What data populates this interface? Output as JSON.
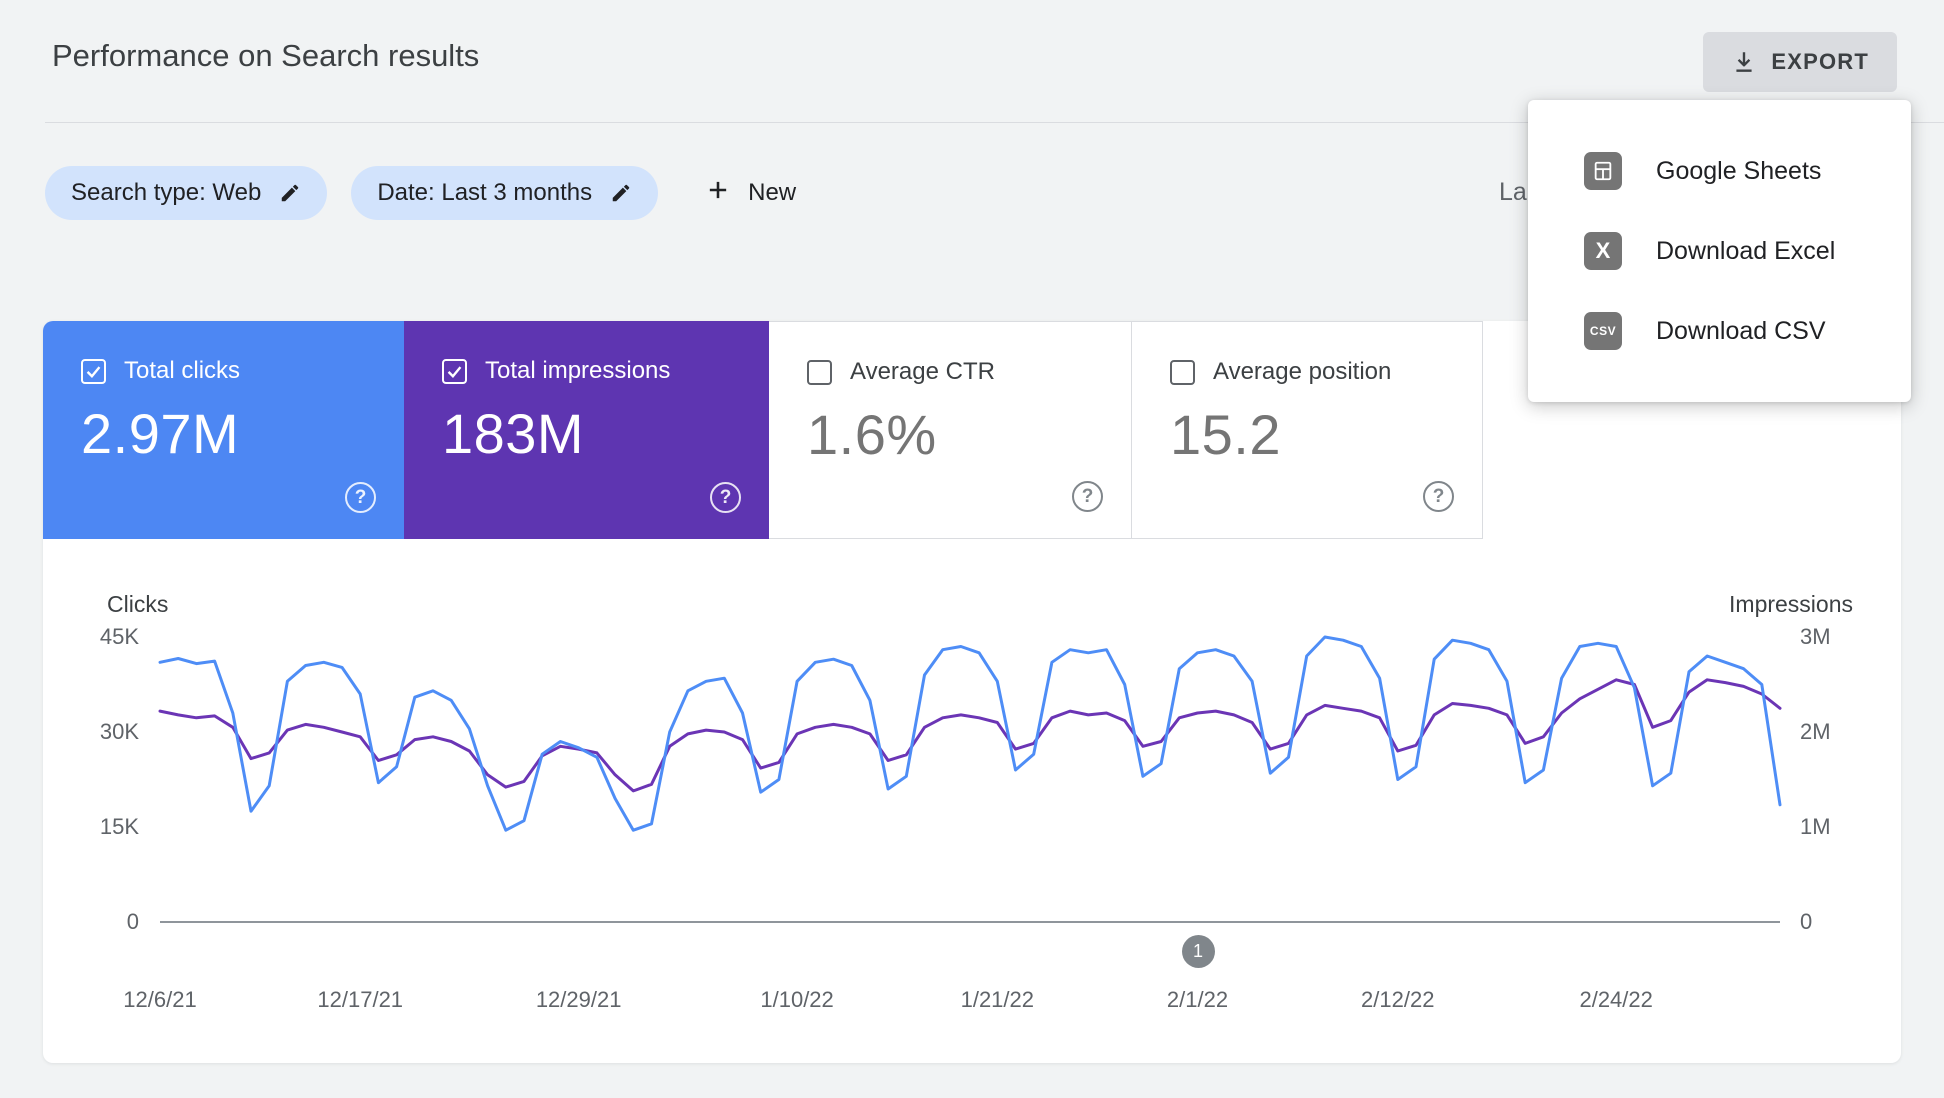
{
  "header": {
    "title": "Performance on Search results",
    "export_label": "EXPORT"
  },
  "filters": {
    "search_type_chip": "Search type: Web",
    "date_chip": "Date: Last 3 months",
    "new_button": "New",
    "last_updated_partial": "La"
  },
  "export_menu": {
    "items": [
      {
        "label": "Google Sheets",
        "icon": "google-sheets-icon"
      },
      {
        "label": "Download Excel",
        "icon": "excel-icon"
      },
      {
        "label": "Download CSV",
        "icon": "csv-icon"
      }
    ]
  },
  "metric_cards": [
    {
      "label": "Total clicks",
      "value": "2.97M",
      "checked": true,
      "bg": "#4d87f3"
    },
    {
      "label": "Total impressions",
      "value": "183M",
      "checked": true,
      "bg": "#5e35b1"
    },
    {
      "label": "Average CTR",
      "value": "1.6%",
      "checked": false,
      "bg": "#ffffff"
    },
    {
      "label": "Average position",
      "value": "15.2",
      "checked": false,
      "bg": "#ffffff"
    }
  ],
  "colors": {
    "clicks_blue": "#4e8df6",
    "impressions_purple": "#6b35b5",
    "chip_blue": "#d2e3fc",
    "page_bg": "#f1f3f4",
    "axis_gray": "#5f6368"
  },
  "chart_data": {
    "type": "line",
    "title": "",
    "grid": "off",
    "left_axis": {
      "label": "Clicks",
      "ticks": [
        "45K",
        "30K",
        "15K",
        "0"
      ],
      "tick_values": [
        45,
        30,
        15,
        0
      ],
      "max": 45,
      "unit": "thousands of clicks"
    },
    "right_axis": {
      "label": "Impressions",
      "ticks": [
        "3M",
        "2M",
        "1M",
        "0"
      ],
      "tick_values": [
        3,
        2,
        1,
        0
      ],
      "max": 3,
      "unit": "millions of impressions"
    },
    "x_ticks": [
      {
        "label": "12/6/21",
        "index": 0
      },
      {
        "label": "12/17/21",
        "index": 11
      },
      {
        "label": "12/29/21",
        "index": 23
      },
      {
        "label": "1/10/22",
        "index": 35
      },
      {
        "label": "1/21/22",
        "index": 46
      },
      {
        "label": "2/1/22",
        "index": 57
      },
      {
        "label": "2/12/22",
        "index": 68
      },
      {
        "label": "2/24/22",
        "index": 80
      }
    ],
    "x_dates": [
      "12/6/21",
      "12/7/21",
      "12/8/21",
      "12/9/21",
      "12/10/21",
      "12/11/21",
      "12/12/21",
      "12/13/21",
      "12/14/21",
      "12/15/21",
      "12/16/21",
      "12/17/21",
      "12/18/21",
      "12/19/21",
      "12/20/21",
      "12/21/21",
      "12/22/21",
      "12/23/21",
      "12/24/21",
      "12/25/21",
      "12/26/21",
      "12/27/21",
      "12/28/21",
      "12/29/21",
      "12/30/21",
      "12/31/21",
      "1/1/22",
      "1/2/22",
      "1/3/22",
      "1/4/22",
      "1/5/22",
      "1/6/22",
      "1/7/22",
      "1/8/22",
      "1/9/22",
      "1/10/22",
      "1/11/22",
      "1/12/22",
      "1/13/22",
      "1/14/22",
      "1/15/22",
      "1/16/22",
      "1/17/22",
      "1/18/22",
      "1/19/22",
      "1/20/22",
      "1/21/22",
      "1/22/22",
      "1/23/22",
      "1/24/22",
      "1/25/22",
      "1/26/22",
      "1/27/22",
      "1/28/22",
      "1/29/22",
      "1/30/22",
      "1/31/22",
      "2/1/22",
      "2/2/22",
      "2/3/22",
      "2/4/22",
      "2/5/22",
      "2/6/22",
      "2/7/22",
      "2/8/22",
      "2/9/22",
      "2/10/22",
      "2/11/22",
      "2/12/22",
      "2/13/22",
      "2/14/22",
      "2/15/22",
      "2/16/22",
      "2/17/22",
      "2/18/22",
      "2/19/22",
      "2/20/22",
      "2/21/22",
      "2/22/22",
      "2/23/22",
      "2/24/22",
      "2/25/22",
      "2/26/22",
      "2/27/22",
      "2/28/22",
      "3/1/22",
      "3/2/22",
      "3/3/22",
      "3/4/22",
      "3/5/22"
    ],
    "series": [
      {
        "name": "Clicks",
        "axis": "left",
        "unit": "K",
        "color": "#4e8df6",
        "values": [
          41.0,
          41.6,
          40.8,
          41.2,
          33.0,
          17.5,
          21.5,
          38.0,
          40.5,
          41.0,
          40.2,
          36.0,
          22.0,
          24.5,
          35.5,
          36.5,
          35.0,
          30.5,
          21.5,
          14.5,
          16.0,
          26.5,
          28.5,
          27.5,
          26.0,
          19.5,
          14.5,
          15.5,
          30.0,
          36.5,
          38.0,
          38.5,
          33.0,
          20.5,
          22.5,
          38.0,
          41.0,
          41.5,
          40.5,
          35.0,
          21.0,
          23.0,
          39.0,
          43.0,
          43.5,
          42.5,
          38.0,
          24.0,
          26.5,
          41.0,
          43.0,
          42.5,
          43.0,
          37.5,
          23.0,
          25.0,
          40.0,
          42.5,
          43.0,
          42.0,
          38.0,
          23.5,
          26.0,
          42.0,
          45.0,
          44.5,
          43.5,
          38.5,
          22.5,
          24.5,
          41.5,
          44.5,
          44.0,
          43.0,
          38.0,
          22.0,
          24.0,
          38.5,
          43.5,
          44.0,
          43.5,
          37.0,
          21.5,
          23.5,
          39.5,
          42.0,
          41.0,
          40.0,
          37.5,
          18.5
        ]
      },
      {
        "name": "Impressions",
        "axis": "right",
        "unit": "M",
        "color": "#6b35b5",
        "values": [
          2.22,
          2.18,
          2.15,
          2.17,
          2.05,
          1.72,
          1.78,
          2.02,
          2.08,
          2.05,
          2.0,
          1.95,
          1.7,
          1.76,
          1.92,
          1.95,
          1.9,
          1.8,
          1.55,
          1.42,
          1.48,
          1.75,
          1.85,
          1.82,
          1.78,
          1.55,
          1.38,
          1.45,
          1.85,
          1.98,
          2.02,
          2.0,
          1.92,
          1.62,
          1.68,
          1.98,
          2.05,
          2.08,
          2.05,
          1.98,
          1.7,
          1.76,
          2.05,
          2.15,
          2.18,
          2.15,
          2.1,
          1.82,
          1.88,
          2.15,
          2.22,
          2.18,
          2.2,
          2.12,
          1.85,
          1.9,
          2.15,
          2.2,
          2.22,
          2.18,
          2.1,
          1.82,
          1.88,
          2.18,
          2.28,
          2.25,
          2.22,
          2.15,
          1.8,
          1.86,
          2.18,
          2.3,
          2.28,
          2.25,
          2.18,
          1.88,
          1.95,
          2.2,
          2.35,
          2.45,
          2.55,
          2.5,
          2.05,
          2.12,
          2.42,
          2.55,
          2.52,
          2.48,
          2.4,
          2.25
        ]
      }
    ],
    "pager": {
      "label": "1",
      "position_index": 57
    }
  }
}
